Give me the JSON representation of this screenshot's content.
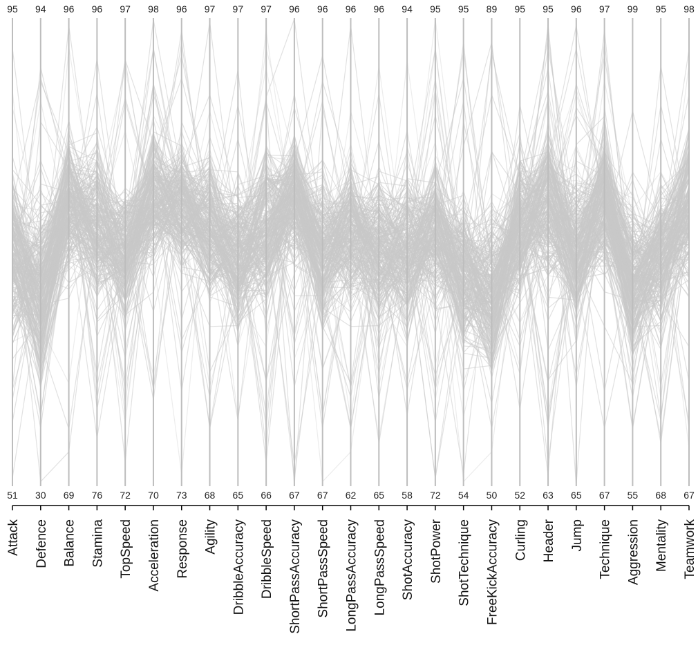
{
  "chart_data": {
    "type": "parallel-coordinates",
    "title": "",
    "dimensions": [
      {
        "name": "Attack",
        "max": 95,
        "min": 51
      },
      {
        "name": "Defence",
        "max": 94,
        "min": 30
      },
      {
        "name": "Balance",
        "max": 96,
        "min": 69
      },
      {
        "name": "Stamina",
        "max": 96,
        "min": 76
      },
      {
        "name": "TopSpeed",
        "max": 97,
        "min": 72
      },
      {
        "name": "Acceleration",
        "max": 98,
        "min": 70
      },
      {
        "name": "Response",
        "max": 96,
        "min": 73
      },
      {
        "name": "Agility",
        "max": 97,
        "min": 68
      },
      {
        "name": "DribbleAccuracy",
        "max": 97,
        "min": 65
      },
      {
        "name": "DribbleSpeed",
        "max": 97,
        "min": 66
      },
      {
        "name": "ShortPassAccuracy",
        "max": 96,
        "min": 67
      },
      {
        "name": "ShortPassSpeed",
        "max": 96,
        "min": 67
      },
      {
        "name": "LongPassAccuracy",
        "max": 96,
        "min": 62
      },
      {
        "name": "LongPassSpeed",
        "max": 96,
        "min": 65
      },
      {
        "name": "ShotAccuracy",
        "max": 94,
        "min": 58
      },
      {
        "name": "ShotPower",
        "max": 95,
        "min": 72
      },
      {
        "name": "ShotTechnique",
        "max": 95,
        "min": 54
      },
      {
        "name": "FreeKickAccuracy",
        "max": 89,
        "min": 50
      },
      {
        "name": "Curling",
        "max": 95,
        "min": 52
      },
      {
        "name": "Header",
        "max": 95,
        "min": 63
      },
      {
        "name": "Jump",
        "max": 96,
        "min": 65
      },
      {
        "name": "Technique",
        "max": 97,
        "min": 67
      },
      {
        "name": "Aggression",
        "max": 99,
        "min": 55
      },
      {
        "name": "Mentality",
        "max": 95,
        "min": 68
      },
      {
        "name": "Teamwork",
        "max": 98,
        "min": 67
      }
    ],
    "line_color": "#c8c8c8",
    "axis_color": "#bdbdbd",
    "legend": "none",
    "grid": false
  }
}
